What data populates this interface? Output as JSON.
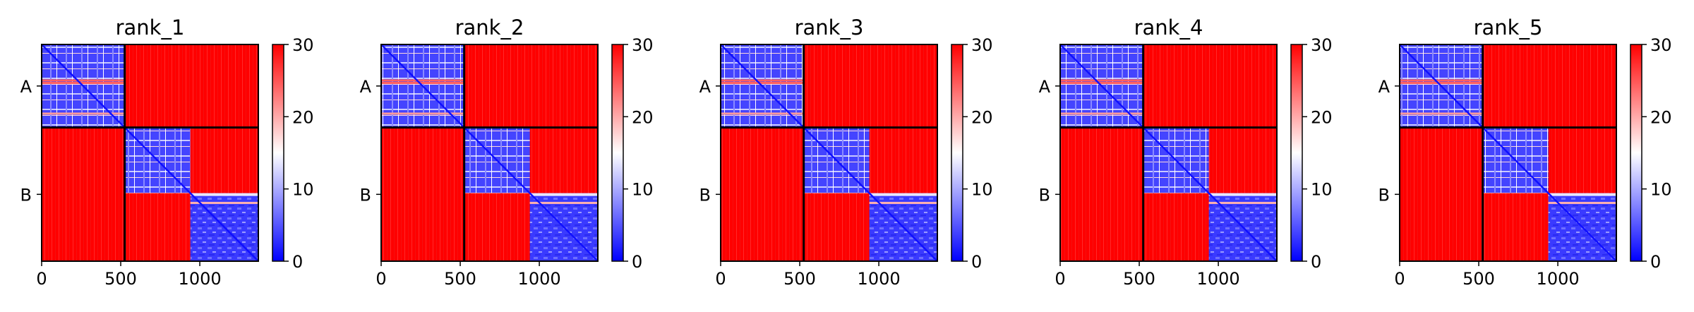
{
  "chart_data": {
    "type": "heatmap",
    "colormap": [
      "#0000ff",
      "#ffffff",
      "#ff0000"
    ],
    "colorbar_ticks": [
      "0",
      "10",
      "20",
      "30"
    ],
    "clim": [
      0,
      30
    ],
    "x_ticks": [
      0,
      500,
      1000
    ],
    "x_tick_labels": [
      "0",
      "500",
      "1000"
    ],
    "xlim": [
      0,
      1370
    ],
    "y_tick_labels": [
      "A",
      "B"
    ],
    "chain_boundary": 525,
    "domain_boundary": 940,
    "panels": [
      {
        "title": "rank_1"
      },
      {
        "title": "rank_2"
      },
      {
        "title": "rank_3"
      },
      {
        "title": "rank_4"
      },
      {
        "title": "rank_5"
      }
    ]
  }
}
